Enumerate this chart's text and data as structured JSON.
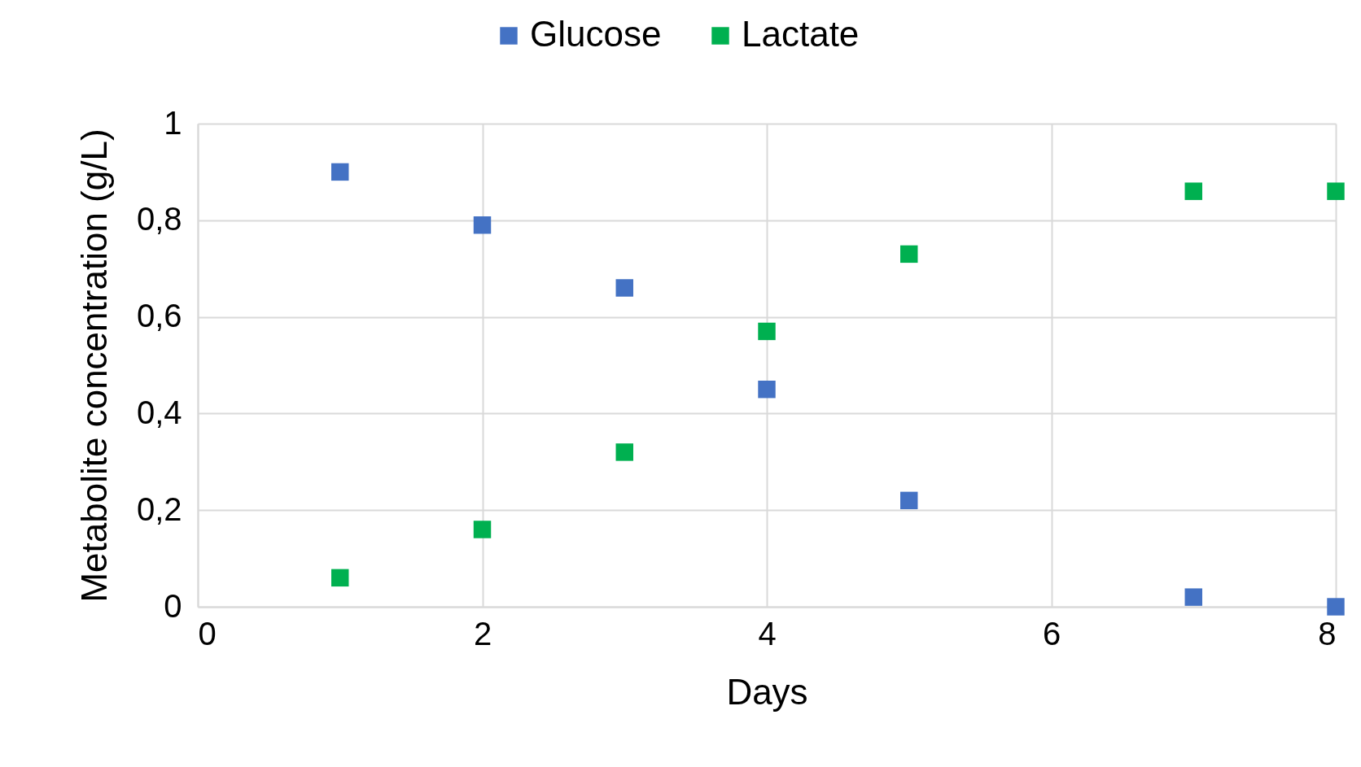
{
  "chart_data": {
    "type": "scatter",
    "xlabel": "Days",
    "ylabel": "Metabolite  concentration (g/L)",
    "x": [
      1,
      2,
      3,
      4,
      5,
      7,
      8
    ],
    "series": [
      {
        "name": "Glucose",
        "color": "#4472c4",
        "values": [
          0.9,
          0.79,
          0.66,
          0.45,
          0.22,
          0.02,
          0
        ]
      },
      {
        "name": "Lactate",
        "color": "#00b050",
        "values": [
          0.06,
          0.16,
          0.32,
          0.57,
          0.73,
          0.86,
          0.86
        ]
      }
    ],
    "xlim": [
      0,
      8
    ],
    "xticks": [
      0,
      2,
      4,
      6,
      8
    ],
    "ylim": [
      0,
      1
    ],
    "yticks": [
      0,
      {
        "value": 0.2,
        "label": "0,2"
      },
      {
        "value": 0.4,
        "label": "0,4"
      },
      {
        "value": 0.6,
        "label": "0,6"
      },
      {
        "value": 0.8,
        "label": "0,8"
      },
      1
    ],
    "grid": true,
    "legend": "top",
    "marker": "square"
  }
}
